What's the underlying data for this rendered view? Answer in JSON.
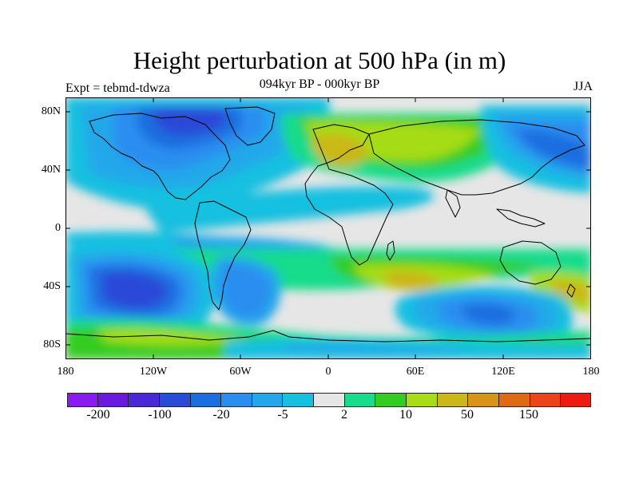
{
  "title": "Height perturbation at 500 hPa (in m)",
  "left_label": "Expt = tebmd-tdwza",
  "center_label": "094kyr BP - 000kyr BP",
  "right_label": "JJA",
  "lat_labels": [
    "80N",
    "40N",
    "0",
    "40S",
    "80S"
  ],
  "lon_labels": [
    "180",
    "120W",
    "60W",
    "0",
    "60E",
    "120E",
    "180"
  ],
  "colorbar": {
    "colors": [
      "#8a1bf0",
      "#6a19e0",
      "#4a28d8",
      "#2a4ad8",
      "#1a6ee0",
      "#2a8ef0",
      "#22a8ea",
      "#18c0e0",
      "#e6e6e6",
      "#18dc8c",
      "#34cc20",
      "#a6dc18",
      "#cab818",
      "#d89418",
      "#e06a14",
      "#ea4418",
      "#ee1a10"
    ],
    "labels": [
      "-200",
      "-100",
      "-20",
      "-5",
      "2",
      "10",
      "50",
      "150"
    ]
  },
  "map_colors": {
    "neutral": "#e6e6e6",
    "pos_1": "#18dc8c",
    "pos_2": "#34cc20",
    "pos_3": "#a6dc18",
    "pos_4": "#cab818",
    "neg_1": "#18c0e0",
    "neg_2": "#22a8ea",
    "neg_3": "#2a8ef0",
    "neg_4": "#1a6ee0",
    "neg_5": "#2a4ad8",
    "coast": "#000000"
  }
}
